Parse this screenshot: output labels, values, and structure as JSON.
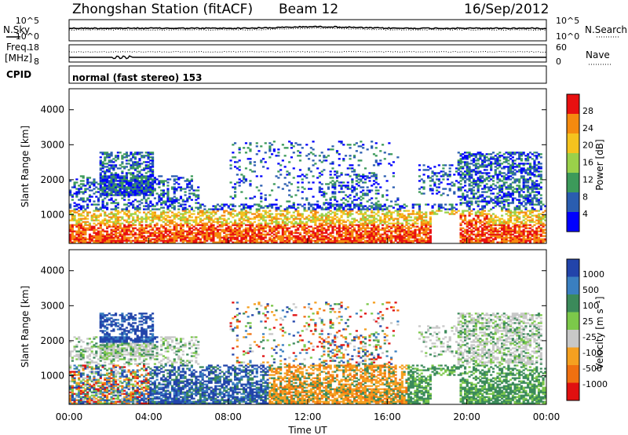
{
  "header": {
    "title": "Zhongshan Station (fitACF)",
    "beam": "Beam 12",
    "date": "16/Sep/2012"
  },
  "top_panel": {
    "left_label": "N.Sky",
    "right_label": "N.Search",
    "left_ticks": [
      "10^5",
      "10^0"
    ],
    "right_ticks": [
      "10^5",
      "10^0"
    ]
  },
  "freq_panel": {
    "left_label_1": "Freq.",
    "left_label_2": "[MHz]",
    "right_label": "Nave",
    "left_ticks": [
      "18",
      "8"
    ],
    "right_ticks": [
      "60",
      "0"
    ]
  },
  "cpid": {
    "label": "CPID",
    "text": "normal (fast stereo) 153"
  },
  "chart_data": [
    {
      "type": "heatmap",
      "name": "power",
      "ylabel": "Slant Range [km]",
      "yticks": [
        1000,
        2000,
        3000,
        4000
      ],
      "ylim": [
        180,
        4600
      ],
      "xlim": [
        0,
        24
      ],
      "colorbar_label": "Power [dB]",
      "colorbar_ticks": [
        "4",
        "8",
        "12",
        "16",
        "20",
        "24",
        "28"
      ],
      "colorbar_colors": [
        "#0000ff",
        "#2a5db0",
        "#3c9a5a",
        "#9ad14a",
        "#f5c31e",
        "#f58a0f",
        "#e81010"
      ]
    },
    {
      "type": "heatmap",
      "name": "velocity",
      "ylabel": "Slant Range [km]",
      "yticks": [
        1000,
        2000,
        3000,
        4000
      ],
      "ylim": [
        180,
        4600
      ],
      "xlim": [
        0,
        24
      ],
      "xticks": [
        "00:00",
        "04:00",
        "08:00",
        "12:00",
        "16:00",
        "20:00",
        "00:00"
      ],
      "xlabel": "Time UT",
      "colorbar_label": "Velocity [m s⁻¹]",
      "colorbar_ticks": [
        "1000",
        "500",
        "100",
        "25",
        "-25",
        "-100",
        "-500",
        "-1000"
      ],
      "colorbar_colors": [
        "#2244aa",
        "#3a7fc0",
        "#3b8a5a",
        "#7cc84a",
        "#c8c8c8",
        "#f5a020",
        "#f07010",
        "#e01010"
      ]
    }
  ]
}
